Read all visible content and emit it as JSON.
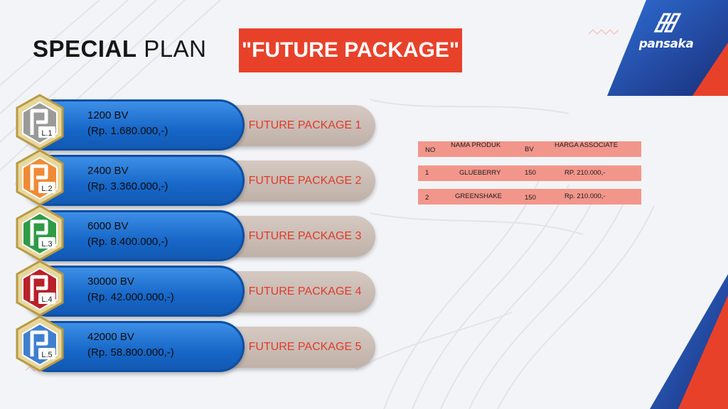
{
  "title": {
    "part1": "SPECIAL",
    "part2": "PLAN",
    "highlight": "\"FUTURE PACKAGE\""
  },
  "brand": {
    "name": "pansaka",
    "logo_icon": "pansaka-logo-icon"
  },
  "colors": {
    "accent_red": "#e8412a",
    "blue": "#1667c8",
    "table_row": "#f2968b",
    "package_text": "#e03a2a"
  },
  "packages": [
    {
      "bv": "1200 BV",
      "price": "(Rp. 1.680.000,-)",
      "name": "FUTURE PACKAGE 1",
      "level": "L.1",
      "badge_color": "#9a9a9a"
    },
    {
      "bv": "2400 BV",
      "price": "(Rp. 3.360.000,-)",
      "name": "FUTURE PACKAGE 2",
      "level": "L.2",
      "badge_color": "#f08a35"
    },
    {
      "bv": "6000 BV",
      "price": "(Rp. 8.400.000,-)",
      "name": "FUTURE PACKAGE 3",
      "level": "L.3",
      "badge_color": "#2f9b46"
    },
    {
      "bv": "30000 BV",
      "price": "(Rp. 42.000.000,-)",
      "name": "FUTURE PACKAGE 4",
      "level": "L.4",
      "badge_color": "#b8202a"
    },
    {
      "bv": "42000 BV",
      "price": "(Rp. 58.800.000,-)",
      "name": "FUTURE PACKAGE 5",
      "level": "L.5",
      "badge_color": "#3f7fd0"
    }
  ],
  "table": {
    "headers": {
      "no": "NO",
      "name": "NAMA PRODUK",
      "bv": "BV",
      "harga": "HARGA ASSOCIATE"
    },
    "rows": [
      {
        "no": "1",
        "name": "GLUEBERRY",
        "bv": "150",
        "harga": "RP. 210.000,-"
      },
      {
        "no": "2",
        "name": "GREENSHAKE",
        "bv": "150",
        "harga": "Rp. 210.000,-"
      }
    ]
  }
}
